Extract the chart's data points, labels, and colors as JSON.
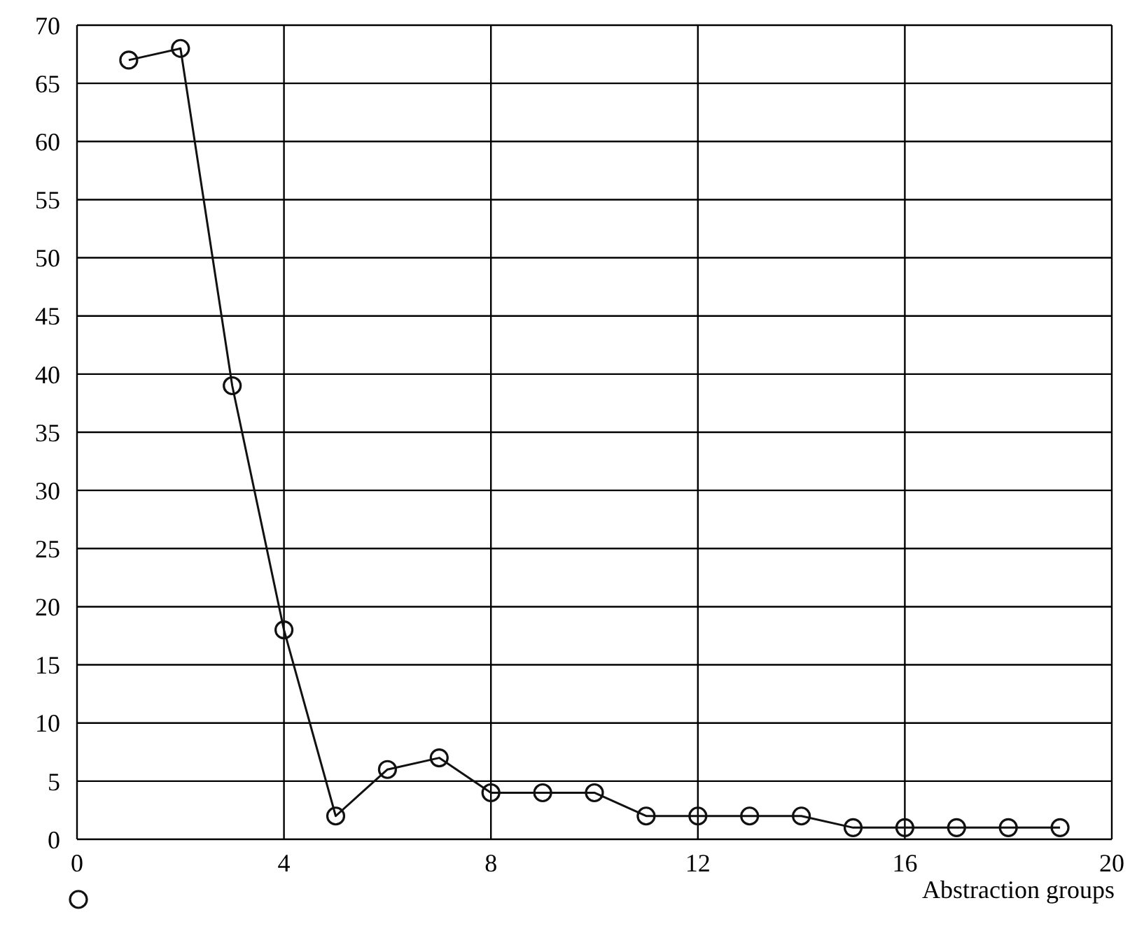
{
  "chart_data": {
    "type": "line",
    "xlabel": "Abstraction groups",
    "x": [
      1,
      2,
      3,
      4,
      5,
      6,
      7,
      8,
      9,
      10,
      11,
      12,
      13,
      14,
      15,
      16,
      17,
      18,
      19
    ],
    "series": [
      {
        "color": "#111111",
        "values": [
          67,
          68,
          39,
          18,
          2,
          6,
          7,
          4,
          4,
          4,
          2,
          2,
          2,
          2,
          1,
          1,
          1,
          1,
          1
        ]
      }
    ],
    "xlim": [
      0,
      20
    ],
    "xticks": [
      0,
      4,
      8,
      12,
      16,
      20
    ],
    "ylim": [
      0,
      70
    ],
    "yticks": [
      0,
      5,
      10,
      15,
      20,
      25,
      30,
      35,
      40,
      45,
      50,
      55,
      60,
      65,
      70
    ],
    "grid": true,
    "marker": "circle",
    "line_style": "solid"
  }
}
